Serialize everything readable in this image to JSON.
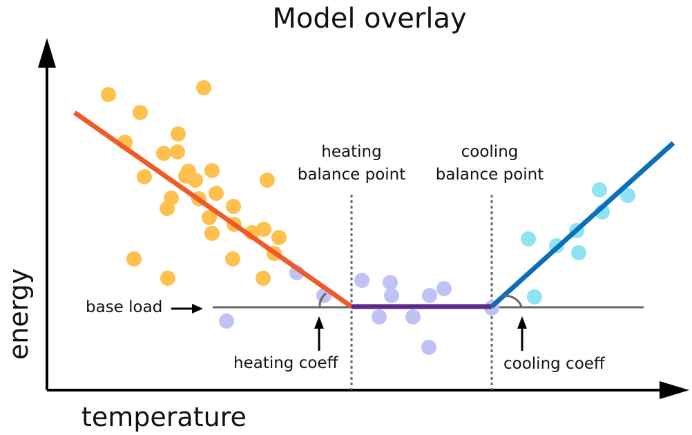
{
  "title": "Model overlay",
  "x_axis_label": "temperature",
  "y_axis_label": "energy",
  "annotations": {
    "heating_balance_line1": "heating",
    "heating_balance_line2": "balance point",
    "cooling_balance_line1": "cooling",
    "cooling_balance_line2": "balance point",
    "base_load": "base load",
    "heating_coeff": "heating coeff",
    "cooling_coeff": "cooling coeff"
  },
  "colors": {
    "heating_line": "#F05A28",
    "base_line": "#5B2A8C",
    "cooling_line": "#0A6FB8",
    "heating_points": "#FFC04D",
    "base_points": "#BFC2F5",
    "cooling_points": "#8EE3F5",
    "axis": "#000000",
    "guide": "#666666"
  },
  "model": {
    "type": "piecewise-linear",
    "segments": [
      "heating",
      "base",
      "cooling"
    ]
  }
}
